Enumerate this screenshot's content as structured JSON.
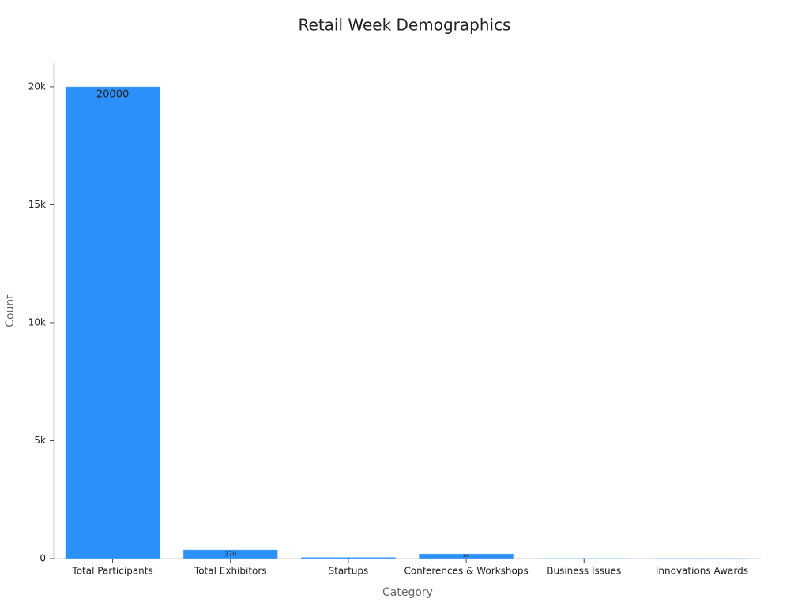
{
  "chart_data": {
    "type": "bar",
    "title": "Retail Week Demographics",
    "x_label": "Category",
    "y_label": "Count",
    "categories": [
      "Total Participants",
      "Total Exhibitors",
      "Startups",
      "Conferences & Workshops",
      "Business Issues",
      "Innovations Awards"
    ],
    "values": [
      20000,
      370,
      50,
      200,
      10,
      5
    ],
    "color": "#2b90fa",
    "ylim": [
      0,
      21000
    ],
    "yticks": [
      0,
      {
        "value": 5000,
        "label": "5k"
      },
      {
        "value": 10000,
        "label": "10k"
      },
      {
        "value": 15000,
        "label": "15k"
      },
      {
        "value": 20000,
        "label": "20k"
      }
    ],
    "grid": false
  }
}
